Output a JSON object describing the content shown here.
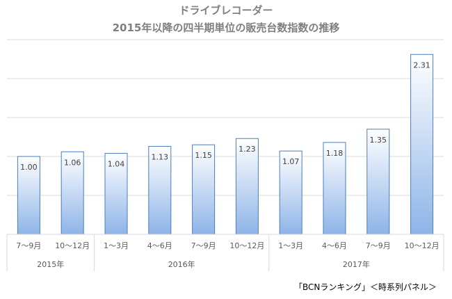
{
  "chart_data": {
    "type": "bar",
    "title": "ドライブレコーダー",
    "subtitle": "2015年以降の四半期単位の販売台数指数の推移",
    "categories": [
      "7～9月",
      "10～12月",
      "1～3月",
      "4～6月",
      "7～9月",
      "10～12月",
      "1～3月",
      "4～6月",
      "7～9月",
      "10～12月"
    ],
    "values": [
      1.0,
      1.06,
      1.04,
      1.13,
      1.15,
      1.23,
      1.07,
      1.18,
      1.35,
      2.31
    ],
    "data_labels": [
      "1.00",
      "1.06",
      "1.04",
      "1.13",
      "1.15",
      "1.23",
      "1.07",
      "1.18",
      "1.35",
      "2.31"
    ],
    "groups": [
      {
        "label": "2015年",
        "start": 0,
        "count": 2
      },
      {
        "label": "2016年",
        "start": 2,
        "count": 4
      },
      {
        "label": "2017年",
        "start": 6,
        "count": 4
      }
    ],
    "ylim": [
      0,
      2.5
    ],
    "ystep": 0.5,
    "grid": true,
    "xlabel": "",
    "ylabel": "",
    "colors": {
      "bar_top": "#ffffff",
      "bar_bottom": "#8eb4e8",
      "bar_border": "#4a7ebb",
      "grid": "#d9d9d9"
    }
  },
  "source": "「BCNランキング」＜時系列パネル＞"
}
